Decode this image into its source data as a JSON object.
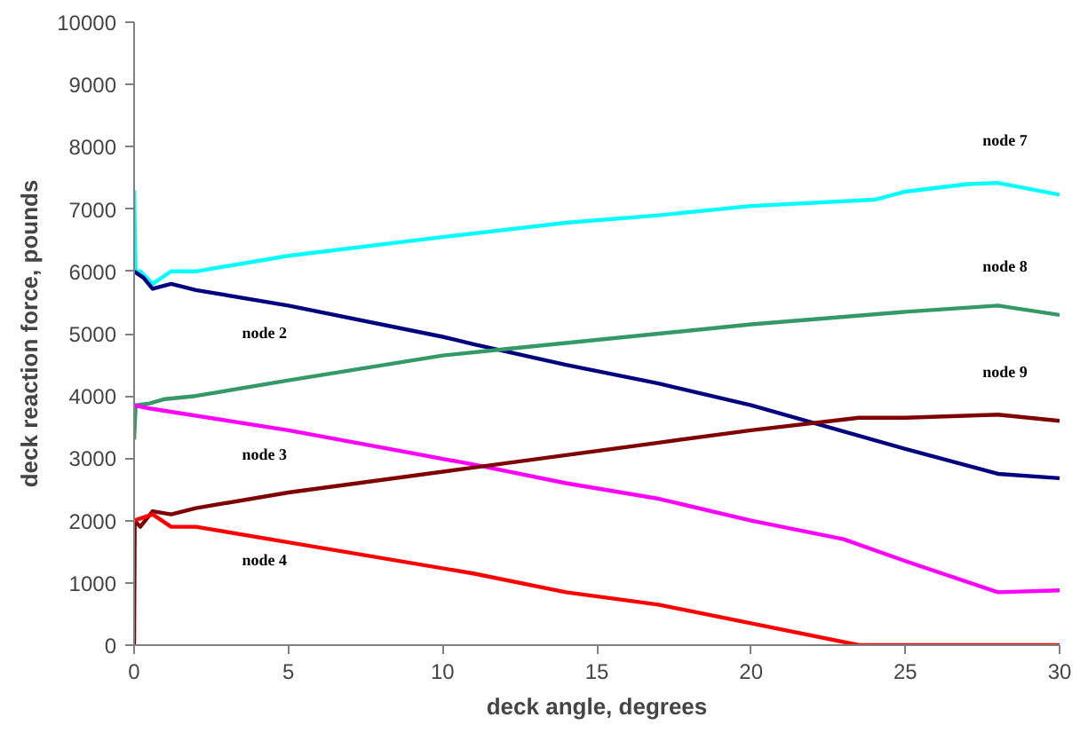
{
  "chart_data": {
    "type": "line",
    "xlabel": "deck angle, degrees",
    "ylabel": "deck reaction force, pounds",
    "xlim": [
      0,
      30
    ],
    "ylim": [
      0,
      10000
    ],
    "xticks": [
      0,
      5,
      10,
      15,
      20,
      25,
      30
    ],
    "yticks": [
      0,
      1000,
      2000,
      3000,
      4000,
      5000,
      6000,
      7000,
      8000,
      9000,
      10000
    ],
    "grid": false,
    "marker": "none",
    "line_style": "solid",
    "series": [
      {
        "name": "node 7",
        "color": "#00ffff",
        "x": [
          0,
          0.05,
          0.2,
          0.6,
          1.2,
          2,
          5,
          10,
          14,
          17,
          20,
          24,
          25,
          27,
          28,
          30
        ],
        "values": [
          7300,
          6000,
          6000,
          5800,
          6000,
          6000,
          6250,
          6550,
          6780,
          6900,
          7050,
          7150,
          7280,
          7400,
          7420,
          7230
        ]
      },
      {
        "name": "node 2",
        "color": "#000080",
        "x": [
          0,
          0.3,
          0.6,
          1.2,
          2,
          5,
          10,
          11,
          14,
          17,
          20,
          25,
          28,
          30
        ],
        "values": [
          6000,
          5900,
          5720,
          5800,
          5700,
          5450,
          4950,
          4830,
          4500,
          4200,
          3850,
          3150,
          2750,
          2680
        ]
      },
      {
        "name": "node 8",
        "color": "#339966",
        "x": [
          0,
          0.05,
          0.5,
          1,
          2,
          5,
          10,
          12,
          15,
          17,
          20,
          25,
          28,
          30
        ],
        "values": [
          3300,
          3850,
          3880,
          3950,
          4000,
          4250,
          4650,
          4750,
          4900,
          5000,
          5150,
          5350,
          5450,
          5300
        ]
      },
      {
        "name": "node 3",
        "color": "#ff00ff",
        "x": [
          0,
          0.5,
          5,
          11,
          14,
          17,
          20,
          23,
          25,
          28,
          30
        ],
        "values": [
          3850,
          3800,
          3450,
          2900,
          2600,
          2350,
          2000,
          1700,
          1350,
          850,
          880
        ]
      },
      {
        "name": "node 9",
        "color": "#800000",
        "x": [
          0,
          0.02,
          0.2,
          0.6,
          1.2,
          2,
          5,
          11,
          14,
          17,
          20,
          23.5,
          25,
          28,
          30
        ],
        "values": [
          0,
          2000,
          1900,
          2150,
          2100,
          2200,
          2450,
          2850,
          3050,
          3250,
          3450,
          3650,
          3650,
          3700,
          3600
        ]
      },
      {
        "name": "node 4",
        "color": "#ff0000",
        "x": [
          0,
          0.6,
          1.2,
          2,
          5,
          11,
          14,
          17,
          20,
          23.5,
          30
        ],
        "values": [
          2000,
          2100,
          1900,
          1900,
          1650,
          1150,
          850,
          650,
          350,
          0,
          0
        ]
      }
    ]
  }
}
